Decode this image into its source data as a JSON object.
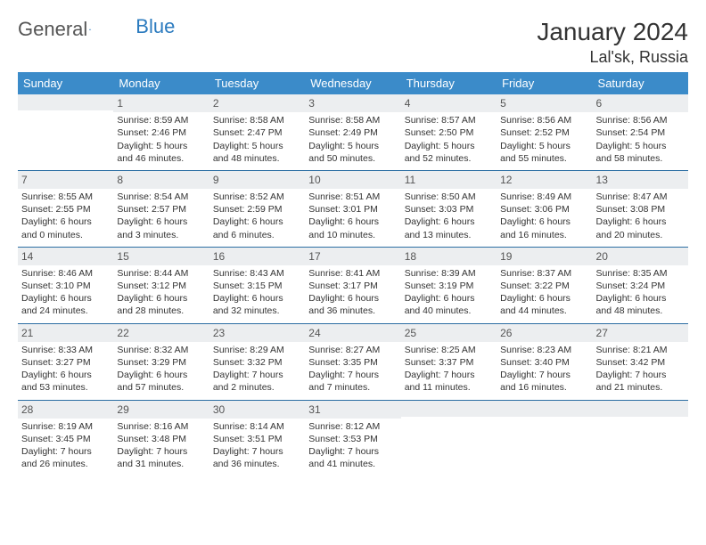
{
  "logo": {
    "text1": "General",
    "text2": "Blue"
  },
  "title": "January 2024",
  "location": "Lal'sk, Russia",
  "header_bg": "#3b8bc9",
  "border_color": "#2c6ea3",
  "daynum_bg": "#eceef0",
  "weekdays": [
    "Sunday",
    "Monday",
    "Tuesday",
    "Wednesday",
    "Thursday",
    "Friday",
    "Saturday"
  ],
  "weeks": [
    [
      {
        "num": "",
        "lines": []
      },
      {
        "num": "1",
        "lines": [
          "Sunrise: 8:59 AM",
          "Sunset: 2:46 PM",
          "Daylight: 5 hours",
          "and 46 minutes."
        ]
      },
      {
        "num": "2",
        "lines": [
          "Sunrise: 8:58 AM",
          "Sunset: 2:47 PM",
          "Daylight: 5 hours",
          "and 48 minutes."
        ]
      },
      {
        "num": "3",
        "lines": [
          "Sunrise: 8:58 AM",
          "Sunset: 2:49 PM",
          "Daylight: 5 hours",
          "and 50 minutes."
        ]
      },
      {
        "num": "4",
        "lines": [
          "Sunrise: 8:57 AM",
          "Sunset: 2:50 PM",
          "Daylight: 5 hours",
          "and 52 minutes."
        ]
      },
      {
        "num": "5",
        "lines": [
          "Sunrise: 8:56 AM",
          "Sunset: 2:52 PM",
          "Daylight: 5 hours",
          "and 55 minutes."
        ]
      },
      {
        "num": "6",
        "lines": [
          "Sunrise: 8:56 AM",
          "Sunset: 2:54 PM",
          "Daylight: 5 hours",
          "and 58 minutes."
        ]
      }
    ],
    [
      {
        "num": "7",
        "lines": [
          "Sunrise: 8:55 AM",
          "Sunset: 2:55 PM",
          "Daylight: 6 hours",
          "and 0 minutes."
        ]
      },
      {
        "num": "8",
        "lines": [
          "Sunrise: 8:54 AM",
          "Sunset: 2:57 PM",
          "Daylight: 6 hours",
          "and 3 minutes."
        ]
      },
      {
        "num": "9",
        "lines": [
          "Sunrise: 8:52 AM",
          "Sunset: 2:59 PM",
          "Daylight: 6 hours",
          "and 6 minutes."
        ]
      },
      {
        "num": "10",
        "lines": [
          "Sunrise: 8:51 AM",
          "Sunset: 3:01 PM",
          "Daylight: 6 hours",
          "and 10 minutes."
        ]
      },
      {
        "num": "11",
        "lines": [
          "Sunrise: 8:50 AM",
          "Sunset: 3:03 PM",
          "Daylight: 6 hours",
          "and 13 minutes."
        ]
      },
      {
        "num": "12",
        "lines": [
          "Sunrise: 8:49 AM",
          "Sunset: 3:06 PM",
          "Daylight: 6 hours",
          "and 16 minutes."
        ]
      },
      {
        "num": "13",
        "lines": [
          "Sunrise: 8:47 AM",
          "Sunset: 3:08 PM",
          "Daylight: 6 hours",
          "and 20 minutes."
        ]
      }
    ],
    [
      {
        "num": "14",
        "lines": [
          "Sunrise: 8:46 AM",
          "Sunset: 3:10 PM",
          "Daylight: 6 hours",
          "and 24 minutes."
        ]
      },
      {
        "num": "15",
        "lines": [
          "Sunrise: 8:44 AM",
          "Sunset: 3:12 PM",
          "Daylight: 6 hours",
          "and 28 minutes."
        ]
      },
      {
        "num": "16",
        "lines": [
          "Sunrise: 8:43 AM",
          "Sunset: 3:15 PM",
          "Daylight: 6 hours",
          "and 32 minutes."
        ]
      },
      {
        "num": "17",
        "lines": [
          "Sunrise: 8:41 AM",
          "Sunset: 3:17 PM",
          "Daylight: 6 hours",
          "and 36 minutes."
        ]
      },
      {
        "num": "18",
        "lines": [
          "Sunrise: 8:39 AM",
          "Sunset: 3:19 PM",
          "Daylight: 6 hours",
          "and 40 minutes."
        ]
      },
      {
        "num": "19",
        "lines": [
          "Sunrise: 8:37 AM",
          "Sunset: 3:22 PM",
          "Daylight: 6 hours",
          "and 44 minutes."
        ]
      },
      {
        "num": "20",
        "lines": [
          "Sunrise: 8:35 AM",
          "Sunset: 3:24 PM",
          "Daylight: 6 hours",
          "and 48 minutes."
        ]
      }
    ],
    [
      {
        "num": "21",
        "lines": [
          "Sunrise: 8:33 AM",
          "Sunset: 3:27 PM",
          "Daylight: 6 hours",
          "and 53 minutes."
        ]
      },
      {
        "num": "22",
        "lines": [
          "Sunrise: 8:32 AM",
          "Sunset: 3:29 PM",
          "Daylight: 6 hours",
          "and 57 minutes."
        ]
      },
      {
        "num": "23",
        "lines": [
          "Sunrise: 8:29 AM",
          "Sunset: 3:32 PM",
          "Daylight: 7 hours",
          "and 2 minutes."
        ]
      },
      {
        "num": "24",
        "lines": [
          "Sunrise: 8:27 AM",
          "Sunset: 3:35 PM",
          "Daylight: 7 hours",
          "and 7 minutes."
        ]
      },
      {
        "num": "25",
        "lines": [
          "Sunrise: 8:25 AM",
          "Sunset: 3:37 PM",
          "Daylight: 7 hours",
          "and 11 minutes."
        ]
      },
      {
        "num": "26",
        "lines": [
          "Sunrise: 8:23 AM",
          "Sunset: 3:40 PM",
          "Daylight: 7 hours",
          "and 16 minutes."
        ]
      },
      {
        "num": "27",
        "lines": [
          "Sunrise: 8:21 AM",
          "Sunset: 3:42 PM",
          "Daylight: 7 hours",
          "and 21 minutes."
        ]
      }
    ],
    [
      {
        "num": "28",
        "lines": [
          "Sunrise: 8:19 AM",
          "Sunset: 3:45 PM",
          "Daylight: 7 hours",
          "and 26 minutes."
        ]
      },
      {
        "num": "29",
        "lines": [
          "Sunrise: 8:16 AM",
          "Sunset: 3:48 PM",
          "Daylight: 7 hours",
          "and 31 minutes."
        ]
      },
      {
        "num": "30",
        "lines": [
          "Sunrise: 8:14 AM",
          "Sunset: 3:51 PM",
          "Daylight: 7 hours",
          "and 36 minutes."
        ]
      },
      {
        "num": "31",
        "lines": [
          "Sunrise: 8:12 AM",
          "Sunset: 3:53 PM",
          "Daylight: 7 hours",
          "and 41 minutes."
        ]
      },
      {
        "num": "",
        "lines": []
      },
      {
        "num": "",
        "lines": []
      },
      {
        "num": "",
        "lines": []
      }
    ]
  ]
}
